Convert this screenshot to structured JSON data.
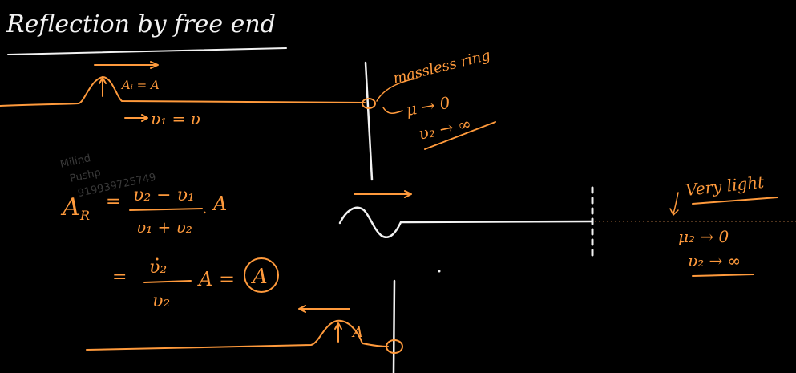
{
  "title": "Reflection by free end",
  "incident": {
    "amplitude_label": "Aᵢ = A",
    "speed_label": "υ₁ = υ"
  },
  "ring": {
    "label": "massless ring",
    "mass_limit": "μ → 0",
    "speed_limit": "υ₂ → ∞"
  },
  "formula": {
    "lhs": "A",
    "lhs_sub": "R",
    "numerator": "υ₂ − υ₁",
    "denominator": "υ₁ + υ₂",
    "factor": "A",
    "step2_numerator": "υ₂",
    "step2_denominator": "υ₂",
    "step2_rest": "A =",
    "result": "A"
  },
  "light_string": {
    "label": "Very light",
    "mass_limit": "μ₂ → 0",
    "speed_limit": "υ₂ → ∞"
  },
  "reflected": {
    "amplitude_label": "A"
  },
  "watermark": {
    "line1": "Milind",
    "line2": "Pushp",
    "line3": "919939725749"
  },
  "colors": {
    "ink_white": "#f2f2f2",
    "ink_orange": "#ff9a3c",
    "background": "#000000"
  }
}
